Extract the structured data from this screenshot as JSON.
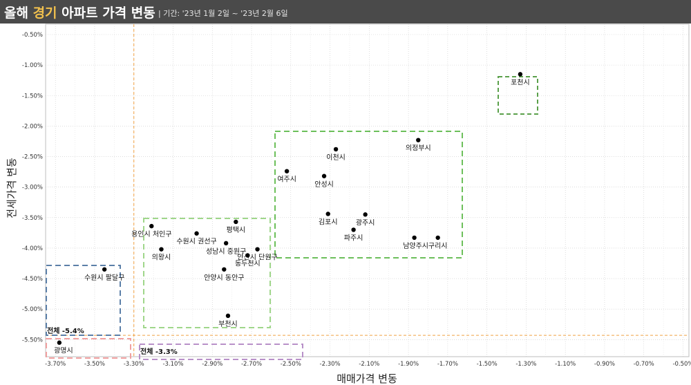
{
  "header": {
    "title_prefix": "올해 ",
    "title_highlight": "경기",
    "title_suffix": " 아파트 가격 변동",
    "period": "| 기간: '23년 1월 2일 ~ '23년 2월 6일"
  },
  "colors": {
    "header_bg": "#4a4a4a",
    "highlight": "#f2c14e",
    "reference_line": "#f0a040",
    "green_box": "#6cbf5a",
    "light_green_box": "#9fd68a",
    "blue_box": "#5b7fa8",
    "pink_box": "#f0a0a0",
    "purple_box": "#b890c8"
  },
  "chart_data": {
    "type": "scatter",
    "xlabel": "매매가격 변동",
    "ylabel": "전세가격 변동",
    "xlim": [
      -3.75,
      -0.47
    ],
    "ylim": [
      -5.78,
      -0.33
    ],
    "x_ticks": [
      "-3.70%",
      "-3.50%",
      "-3.30%",
      "-3.10%",
      "-2.90%",
      "-2.70%",
      "-2.50%",
      "-2.30%",
      "-2.10%",
      "-1.90%",
      "-1.70%",
      "-1.50%",
      "-1.30%",
      "-1.10%",
      "-0.90%",
      "-0.70%",
      "-0.50%"
    ],
    "x_tick_values": [
      -3.7,
      -3.5,
      -3.3,
      -3.1,
      -2.9,
      -2.7,
      -2.5,
      -2.3,
      -2.1,
      -1.9,
      -1.7,
      -1.5,
      -1.3,
      -1.1,
      -0.9,
      -0.7,
      -0.5
    ],
    "y_ticks": [
      "-0.50%",
      "-1.00%",
      "-1.50%",
      "-2.00%",
      "-2.50%",
      "-3.00%",
      "-3.50%",
      "-4.00%",
      "-4.50%",
      "-5.00%",
      "-5.50%"
    ],
    "y_tick_values": [
      -0.5,
      -1.0,
      -1.5,
      -2.0,
      -2.5,
      -3.0,
      -3.5,
      -4.0,
      -4.5,
      -5.0,
      -5.5
    ],
    "grid": true,
    "points": [
      {
        "label": "포천시",
        "x": -1.33,
        "y": -1.15
      },
      {
        "label": "의정부시",
        "x": -1.85,
        "y": -2.23
      },
      {
        "label": "이천시",
        "x": -2.27,
        "y": -2.38
      },
      {
        "label": "여주시",
        "x": -2.52,
        "y": -2.74
      },
      {
        "label": "안성시",
        "x": -2.33,
        "y": -2.82
      },
      {
        "label": "김포시",
        "x": -2.31,
        "y": -3.44
      },
      {
        "label": "광주시",
        "x": -2.12,
        "y": -3.45
      },
      {
        "label": "파주시",
        "x": -2.18,
        "y": -3.7
      },
      {
        "label": "남양주시",
        "x": -1.87,
        "y": -3.83
      },
      {
        "label": "구리시",
        "x": -1.75,
        "y": -3.83
      },
      {
        "label": "평택시",
        "x": -2.78,
        "y": -3.57
      },
      {
        "label": "용인시 처인구",
        "x": -3.21,
        "y": -3.64
      },
      {
        "label": "수원시 권선구",
        "x": -2.98,
        "y": -3.76
      },
      {
        "label": "성남시 중원구",
        "x": -2.83,
        "y": -3.92
      },
      {
        "label": "안산시 단원구",
        "x": -2.67,
        "y": -4.02
      },
      {
        "label": "동두천시",
        "x": -2.72,
        "y": -4.12
      },
      {
        "label": "의왕시",
        "x": -3.16,
        "y": -4.02
      },
      {
        "label": "안양시 동안구",
        "x": -2.84,
        "y": -4.35
      },
      {
        "label": "수원시 팔달구",
        "x": -3.45,
        "y": -4.35
      },
      {
        "label": "부천시",
        "x": -2.82,
        "y": -5.11
      },
      {
        "label": "광명시",
        "x": -3.68,
        "y": -5.55
      }
    ],
    "reference_lines": [
      {
        "orientation": "vertical",
        "x": -3.3
      },
      {
        "orientation": "horizontal",
        "y": -5.43
      }
    ],
    "annotations": [
      {
        "text": "전체 -5.4%"
      },
      {
        "text": "전체 -3.3%"
      }
    ]
  }
}
